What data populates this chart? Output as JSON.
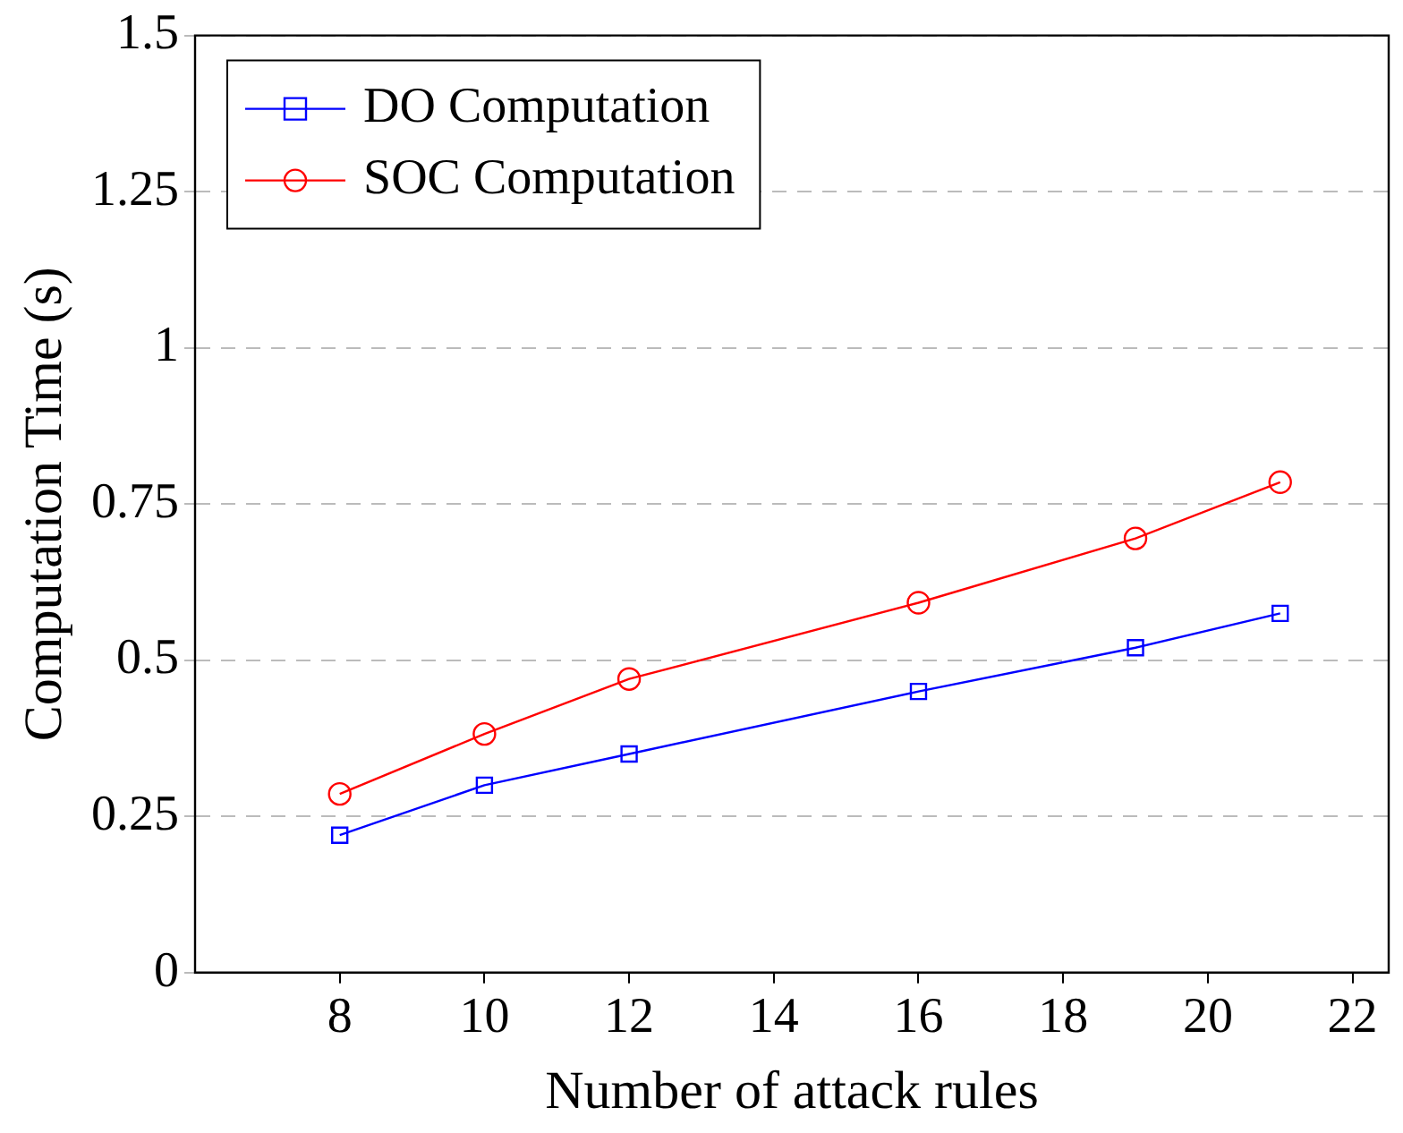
{
  "chart_data": {
    "type": "line",
    "xlabel": "Number of attack rules",
    "ylabel": "Computation Time (s)",
    "x": [
      8,
      10,
      12,
      16,
      19,
      21
    ],
    "series": [
      {
        "name": "DO Computation",
        "color": "#0000ff",
        "marker": "square",
        "values": [
          0.22,
          0.3,
          0.35,
          0.45,
          0.52,
          0.575
        ]
      },
      {
        "name": "SOC Computation",
        "color": "#ff0000",
        "marker": "circle",
        "values": [
          0.286,
          0.382,
          0.47,
          0.592,
          0.695,
          0.785
        ]
      }
    ],
    "xlim": [
      6,
      22.5
    ],
    "xticks": [
      8,
      10,
      12,
      14,
      16,
      18,
      20,
      22
    ],
    "ylim": [
      0,
      1.5
    ],
    "yticks": [
      0,
      0.25,
      0.5,
      0.75,
      1,
      1.25,
      1.5
    ],
    "grid": "y",
    "legend": "top left",
    "line_style": "solid"
  }
}
